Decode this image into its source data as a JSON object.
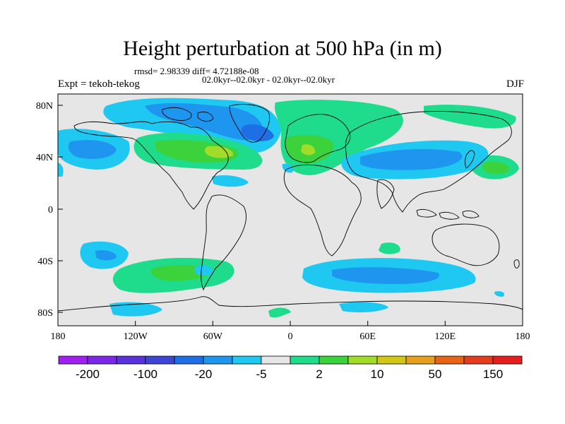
{
  "title": "Height perturbation at 500 hPa (in m)",
  "stats": "rmsd= 2.98339 diff= 4.72188e-08",
  "periods": "02.0kyr--02.0kyr - 02.0kyr--02.0kyr",
  "experiment": "Expt = tekoh-tekog",
  "season": "DJF",
  "map": {
    "lon_labels": [
      "180",
      "120W",
      "60W",
      "0",
      "60E",
      "120E",
      "180"
    ],
    "lat_labels": [
      "80N",
      "40N",
      "0",
      "40S",
      "80S"
    ]
  },
  "colorbar": {
    "colors": [
      "#a020f0",
      "#7d28e8",
      "#5a32dc",
      "#3c46d2",
      "#1e6ee6",
      "#1e96f0",
      "#1ec8f0",
      "#e6e6e6",
      "#1edc8c",
      "#3cd23c",
      "#a0dc28",
      "#d2c814",
      "#e6a01e",
      "#e66414",
      "#e63c1e",
      "#e61e1e"
    ],
    "labels": [
      "-200",
      "-100",
      "-20",
      "-5",
      "2",
      "10",
      "50",
      "150"
    ]
  }
}
